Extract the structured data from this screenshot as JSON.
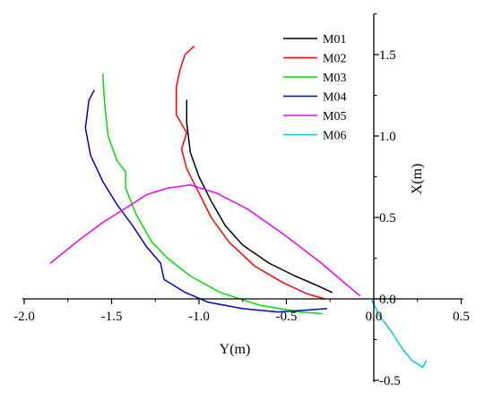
{
  "chart_data": {
    "type": "line",
    "xlabel": "Y(m)",
    "ylabel": "X(m)",
    "xlim": [
      -2.0,
      0.5
    ],
    "ylim": [
      -0.5,
      1.75
    ],
    "x_ticks": [
      -2.0,
      -1.5,
      -1.0,
      -0.5,
      0.0,
      0.5
    ],
    "y_ticks": [
      -0.5,
      0.0,
      0.5,
      1.0,
      1.5
    ],
    "x_tick_labels": [
      "-2.0",
      "-1.5",
      "-1.0",
      "-0.5",
      "0.0",
      "0.5"
    ],
    "y_tick_labels": [
      "-0.5",
      "0.0",
      "0.5",
      "1.0",
      "1.5"
    ],
    "legend_position": "top-right",
    "series": [
      {
        "name": "M01",
        "color": "#000000",
        "points": [
          [
            -1.07,
            1.22
          ],
          [
            -1.07,
            1.08
          ],
          [
            -1.05,
            0.9
          ],
          [
            -1.0,
            0.75
          ],
          [
            -0.93,
            0.6
          ],
          [
            -0.85,
            0.45
          ],
          [
            -0.75,
            0.33
          ],
          [
            -0.6,
            0.22
          ],
          [
            -0.45,
            0.14
          ],
          [
            -0.32,
            0.08
          ],
          [
            -0.24,
            0.04
          ]
        ]
      },
      {
        "name": "M02",
        "color": "#ff0000",
        "points": [
          [
            -1.03,
            1.55
          ],
          [
            -1.08,
            1.5
          ],
          [
            -1.11,
            1.4
          ],
          [
            -1.13,
            1.3
          ],
          [
            -1.13,
            1.2
          ],
          [
            -1.13,
            1.13
          ],
          [
            -1.07,
            1.02
          ],
          [
            -1.1,
            0.92
          ],
          [
            -1.07,
            0.8
          ],
          [
            -1.0,
            0.65
          ],
          [
            -0.93,
            0.5
          ],
          [
            -0.83,
            0.35
          ],
          [
            -0.68,
            0.2
          ],
          [
            -0.52,
            0.1
          ],
          [
            -0.38,
            0.03
          ],
          [
            -0.28,
            0.0
          ]
        ]
      },
      {
        "name": "M03",
        "color": "#00dd00",
        "points": [
          [
            -1.55,
            1.38
          ],
          [
            -1.54,
            1.2
          ],
          [
            -1.52,
            1.0
          ],
          [
            -1.47,
            0.85
          ],
          [
            -1.42,
            0.78
          ],
          [
            -1.42,
            0.68
          ],
          [
            -1.36,
            0.52
          ],
          [
            -1.27,
            0.35
          ],
          [
            -1.18,
            0.25
          ],
          [
            -1.05,
            0.14
          ],
          [
            -0.88,
            0.04
          ],
          [
            -0.65,
            -0.04
          ],
          [
            -0.42,
            -0.08
          ],
          [
            -0.3,
            -0.09
          ]
        ]
      },
      {
        "name": "M04",
        "color": "#0000cc",
        "points": [
          [
            -1.6,
            1.28
          ],
          [
            -1.63,
            1.22
          ],
          [
            -1.65,
            1.05
          ],
          [
            -1.62,
            0.88
          ],
          [
            -1.55,
            0.72
          ],
          [
            -1.47,
            0.58
          ],
          [
            -1.38,
            0.45
          ],
          [
            -1.3,
            0.32
          ],
          [
            -1.22,
            0.22
          ],
          [
            -1.2,
            0.12
          ],
          [
            -1.08,
            0.04
          ],
          [
            -0.95,
            -0.02
          ],
          [
            -0.75,
            -0.06
          ],
          [
            -0.55,
            -0.08
          ],
          [
            -0.4,
            -0.07
          ],
          [
            -0.27,
            -0.06
          ]
        ]
      },
      {
        "name": "M05",
        "color": "#ee00ee",
        "points": [
          [
            -1.85,
            0.22
          ],
          [
            -1.7,
            0.35
          ],
          [
            -1.55,
            0.47
          ],
          [
            -1.4,
            0.57
          ],
          [
            -1.3,
            0.64
          ],
          [
            -1.18,
            0.68
          ],
          [
            -1.05,
            0.7
          ],
          [
            -0.9,
            0.65
          ],
          [
            -0.72,
            0.55
          ],
          [
            -0.52,
            0.4
          ],
          [
            -0.3,
            0.22
          ],
          [
            -0.17,
            0.1
          ],
          [
            -0.08,
            0.02
          ]
        ]
      },
      {
        "name": "M06",
        "color": "#00cccc",
        "points": [
          [
            -0.01,
            -0.01
          ],
          [
            0.03,
            -0.1
          ],
          [
            0.1,
            -0.2
          ],
          [
            0.16,
            -0.3
          ],
          [
            0.22,
            -0.38
          ],
          [
            0.28,
            -0.42
          ],
          [
            0.3,
            -0.38
          ]
        ]
      }
    ]
  }
}
